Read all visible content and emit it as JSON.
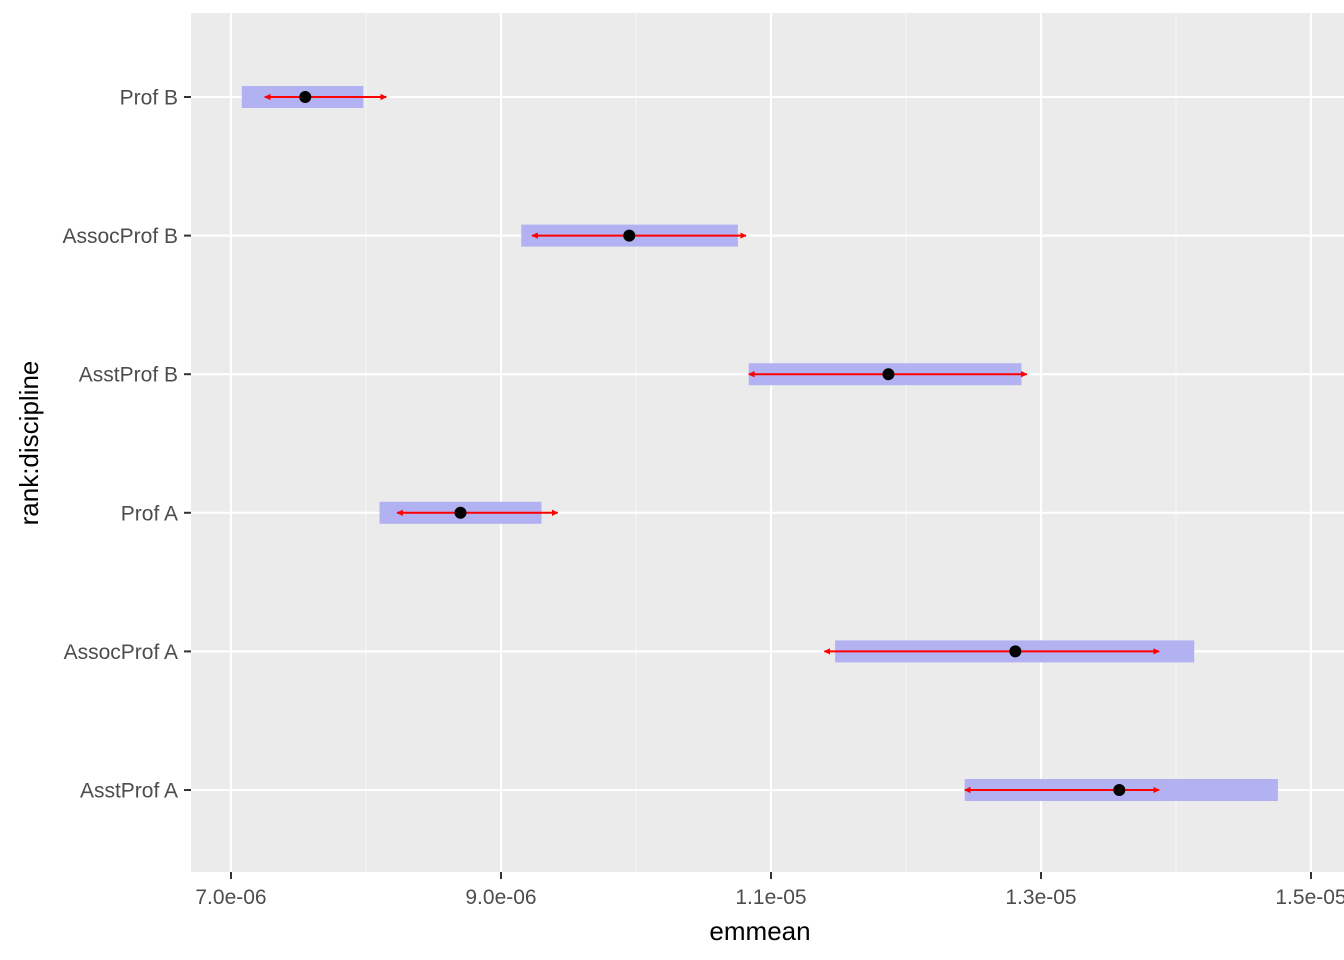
{
  "chart_data": {
    "type": "interval",
    "xlabel": "emmean",
    "ylabel": "rank:discipline",
    "xlim": [
      6.7e-06,
      1.5e-05
    ],
    "x_ticks": [
      7e-06,
      9e-06,
      1.1e-05,
      1.3e-05,
      1.5e-05
    ],
    "x_tick_labels": [
      "7.0e-06",
      "9.0e-06",
      "1.1e-05",
      "1.3e-05",
      "1.5e-05"
    ],
    "categories": [
      "AsstProf A",
      "AssocProf A",
      "Prof A",
      "AsstProf B",
      "AssocProf B",
      "Prof B"
    ],
    "series": [
      {
        "name": "emmean",
        "values": [
          1.358e-05,
          1.281e-05,
          8.7e-06,
          1.187e-05,
          9.95e-06,
          7.55e-06
        ]
      },
      {
        "name": "CI lower",
        "values": [
          1.2435e-05,
          1.1475e-05,
          8.1e-06,
          1.0835e-05,
          9.15e-06,
          7.08e-06
        ]
      },
      {
        "name": "CI upper",
        "values": [
          1.4755e-05,
          1.4135e-05,
          9.3e-06,
          1.2855e-05,
          1.0755e-05,
          7.98e-06
        ]
      },
      {
        "name": "comparison lower",
        "values": [
          1.2435e-05,
          1.1395e-05,
          8.23e-06,
          1.0835e-05,
          9.23e-06,
          7.25e-06
        ]
      },
      {
        "name": "comparison upper",
        "values": [
          1.3875e-05,
          1.3875e-05,
          9.42e-06,
          1.2895e-05,
          1.0815e-05,
          8.15e-06
        ]
      }
    ],
    "grid": true,
    "colors": {
      "panel_background": "#ebebeb",
      "grid_major": "#ffffff",
      "ci_bar": "#b2b2f2",
      "comparison_arrow": "#ff0000",
      "point": "#000000",
      "tick_label": "#4d4d4d",
      "axis_title": "#000000"
    }
  }
}
